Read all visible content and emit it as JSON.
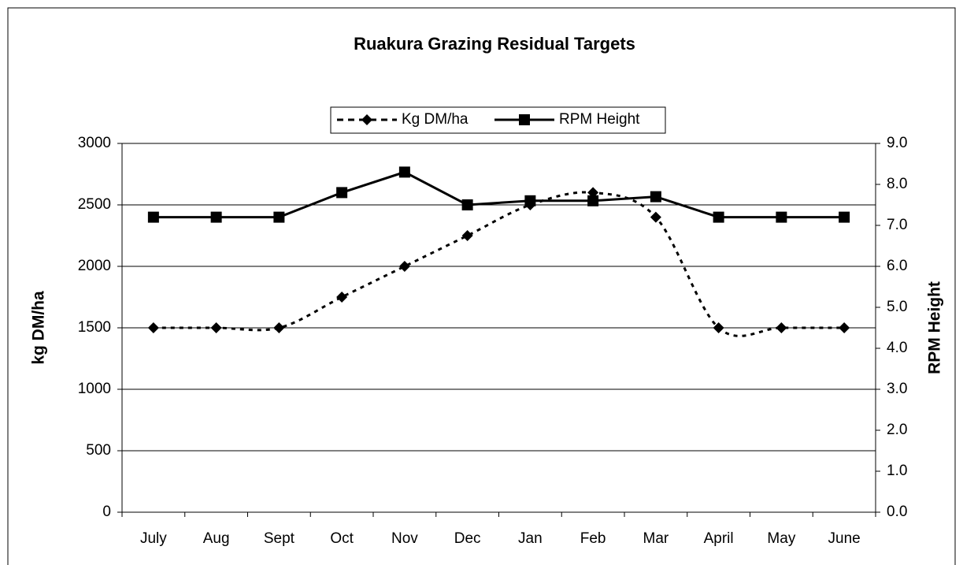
{
  "chart_data": {
    "type": "line",
    "title": "Ruakura Grazing Residual Targets",
    "y_label": "kg DM/ha",
    "y2_label": "RPM Height",
    "categories": [
      "July",
      "Aug",
      "Sept",
      "Oct",
      "Nov",
      "Dec",
      "Jan",
      "Feb",
      "Mar",
      "April",
      "May",
      "June"
    ],
    "series": [
      {
        "name": "Kg DM/ha",
        "color": "#000000",
        "dashed": true,
        "smooth": true,
        "marker": "diamond",
        "values": [
          1500,
          1500,
          1500,
          1750,
          2000,
          2250,
          2500,
          2600,
          2400,
          1500,
          1500,
          1500
        ]
      },
      {
        "name": "RPM Height",
        "color": "#000000",
        "dashed": false,
        "smooth": false,
        "marker": "square",
        "axis": "y2",
        "values": [
          7.2,
          7.2,
          7.2,
          7.8,
          8.3,
          7.5,
          7.6,
          7.6,
          7.7,
          7.2,
          7.2,
          7.2
        ]
      }
    ],
    "ylim": [
      0,
      3000
    ],
    "yticks": [
      0,
      500,
      1000,
      1500,
      2000,
      2500,
      3000
    ],
    "y2lim": [
      0,
      9
    ],
    "y2ticks": [
      {
        "value": 0,
        "label": "0.0"
      },
      {
        "value": 1,
        "label": "1.0"
      },
      {
        "value": 2,
        "label": "2.0"
      },
      {
        "value": 3,
        "label": "3.0"
      },
      {
        "value": 4,
        "label": "4.0"
      },
      {
        "value": 5,
        "label": "5.0"
      },
      {
        "value": 6,
        "label": "6.0"
      },
      {
        "value": 7,
        "label": "7.0"
      },
      {
        "value": 8,
        "label": "8.0"
      },
      {
        "value": 9,
        "label": "9.0"
      }
    ],
    "grid": true,
    "legend": "top"
  }
}
